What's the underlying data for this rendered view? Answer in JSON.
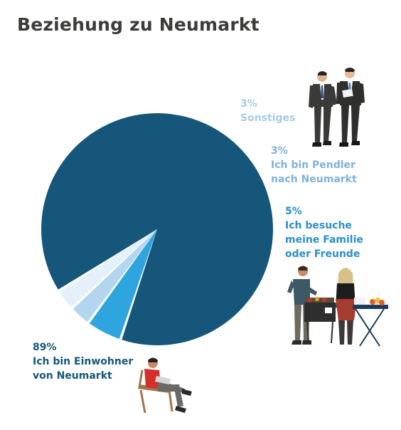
{
  "title": "Beziehung zu Neumarkt",
  "chart_data": {
    "type": "pie",
    "title": "Beziehung zu Neumarkt",
    "slices": [
      {
        "percent_label": "89%",
        "value": 89,
        "label_lines": [
          "Ich bin Einwohner",
          "von Neumarkt"
        ],
        "color": "#16567a",
        "label_color": "#16567a"
      },
      {
        "percent_label": "5%",
        "value": 5,
        "label_lines": [
          "Ich besuche",
          "meine Familie",
          "oder Freunde"
        ],
        "color": "#2fa5df",
        "label_color": "#2a8fcb"
      },
      {
        "percent_label": "3%",
        "value": 3,
        "label_lines": [
          "Ich bin Pendler",
          "nach Neumarkt"
        ],
        "color": "#b3d6f0",
        "label_color": "#7fb2da"
      },
      {
        "percent_label": "3%",
        "value": 3,
        "label_lines": [
          "Sonstiges"
        ],
        "color": "#e4f0fa",
        "label_color": "#a9cbe6"
      }
    ],
    "legend": "none"
  }
}
